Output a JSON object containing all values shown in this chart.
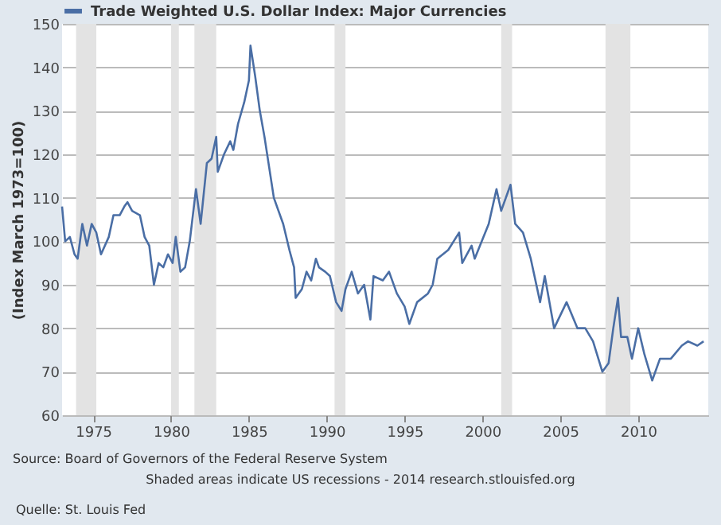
{
  "chart_data": {
    "type": "line",
    "ylabel": "(Index March 1973=100)",
    "annotations": [
      "Source: Board of Governors of the Federal Reserve System",
      "Shaded areas indicate US recessions - 2014 research.stlouisfed.org",
      "Quelle: St. Louis Fed"
    ],
    "xlim": [
      1973.0,
      2014.5
    ],
    "xticks": [
      1975,
      1980,
      1985,
      1990,
      1995,
      2000,
      2005,
      2010
    ],
    "ylim": [
      60,
      150
    ],
    "yticks": [
      60,
      70,
      80,
      90,
      100,
      110,
      120,
      130,
      140,
      150
    ],
    "grid": "y",
    "legend": "top",
    "bands": [
      {
        "axis": "x",
        "from": 1973.9,
        "to": 1975.2,
        "color": "#e3e3e3"
      },
      {
        "axis": "x",
        "from": 1980.0,
        "to": 1980.5,
        "color": "#e3e3e3"
      },
      {
        "axis": "x",
        "from": 1981.5,
        "to": 1982.9,
        "color": "#e3e3e3"
      },
      {
        "axis": "x",
        "from": 1990.5,
        "to": 1991.2,
        "color": "#e3e3e3"
      },
      {
        "axis": "x",
        "from": 2001.2,
        "to": 2001.9,
        "color": "#e3e3e3"
      },
      {
        "axis": "x",
        "from": 2007.9,
        "to": 2009.5,
        "color": "#e3e3e3"
      }
    ],
    "series": [
      {
        "name": "Trade Weighted U.S. Dollar Index: Major Currencies",
        "color": "#4a6ea5",
        "x": [
          1973.0,
          1973.2,
          1973.5,
          1973.8,
          1974.0,
          1974.3,
          1974.6,
          1974.9,
          1975.2,
          1975.5,
          1976.0,
          1976.3,
          1976.7,
          1977.0,
          1977.2,
          1977.5,
          1978.0,
          1978.3,
          1978.6,
          1978.9,
          1979.2,
          1979.5,
          1979.8,
          1980.1,
          1980.3,
          1980.6,
          1980.9,
          1981.2,
          1981.6,
          1981.9,
          1982.3,
          1982.6,
          1982.9,
          1983.0,
          1983.4,
          1983.8,
          1984.0,
          1984.3,
          1984.7,
          1985.0,
          1985.1,
          1985.4,
          1985.7,
          1986.0,
          1986.3,
          1986.6,
          1986.9,
          1987.2,
          1987.6,
          1987.9,
          1988.0,
          1988.4,
          1988.7,
          1989.0,
          1989.3,
          1989.5,
          1989.9,
          1990.2,
          1990.6,
          1990.95,
          1991.2,
          1991.6,
          1992.0,
          1992.4,
          1992.8,
          1993.0,
          1993.6,
          1994.0,
          1994.5,
          1995.0,
          1995.3,
          1995.8,
          1996.5,
          1996.8,
          1997.1,
          1997.8,
          1998.5,
          1998.7,
          1999.3,
          1999.5,
          2000.4,
          2000.9,
          2001.2,
          2001.8,
          2002.1,
          2002.6,
          2003.1,
          2003.7,
          2004.0,
          2004.6,
          2005.4,
          2006.1,
          2006.6,
          2007.1,
          2007.7,
          2008.1,
          2008.4,
          2008.7,
          2008.9,
          2009.3,
          2009.6,
          2010.0,
          2010.4,
          2010.9,
          2011.4,
          2012.1,
          2012.8,
          2013.2,
          2013.8,
          2014.2
        ],
        "values": [
          108,
          100,
          101,
          97,
          96,
          104,
          99,
          104,
          102,
          97,
          101,
          106,
          106,
          108,
          109,
          107,
          106,
          101,
          99,
          90,
          95,
          94,
          97,
          95,
          101,
          93,
          94,
          100,
          112,
          104,
          118,
          119,
          124,
          116,
          120,
          123,
          121,
          127,
          132,
          137,
          145,
          138,
          130,
          124,
          117,
          110,
          107,
          104,
          98,
          94,
          87,
          89,
          93,
          91,
          96,
          94,
          93,
          92,
          86,
          84,
          89,
          93,
          88,
          90,
          82,
          92,
          91,
          93,
          88,
          85,
          81,
          86,
          88,
          90,
          96,
          98,
          102,
          95,
          99,
          96,
          104,
          112,
          107,
          113,
          104,
          102,
          96,
          86,
          92,
          80,
          86,
          80,
          80,
          77,
          70,
          72,
          80,
          87,
          78,
          78,
          73,
          80,
          74,
          68,
          73,
          73,
          76,
          77,
          76,
          77
        ]
      }
    ]
  }
}
